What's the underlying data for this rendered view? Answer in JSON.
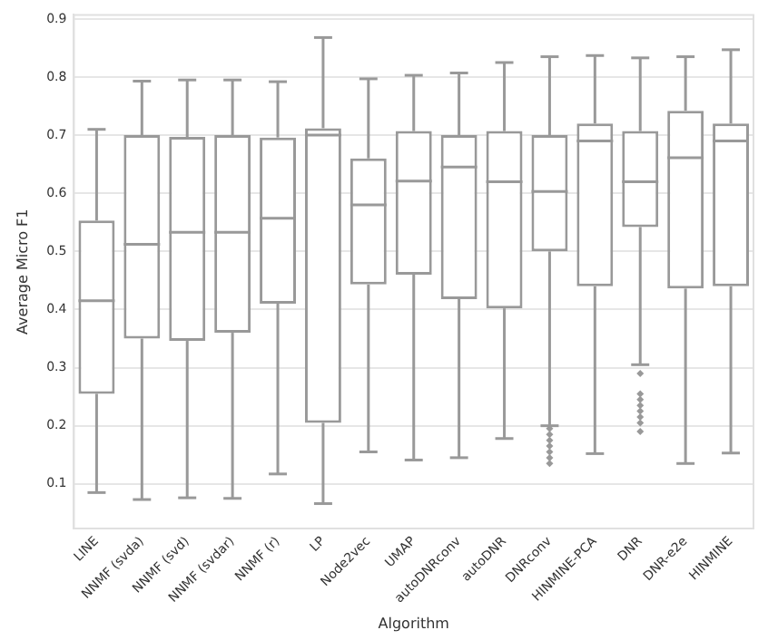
{
  "chart_data": {
    "type": "box",
    "xlabel": "Algorithm",
    "ylabel": "Average Micro F1",
    "categories": [
      "LINE",
      "NNMF (svda)",
      "NNMF (svd)",
      "NNMF (svdar)",
      "NNMF (r)",
      "LP",
      "Node2vec",
      "UMAP",
      "autoDNRconv",
      "autoDNR",
      "DNRconv",
      "HINMINE-PCA",
      "DNR",
      "DNR-e2e",
      "HINMINE"
    ],
    "color": "#999999",
    "boxes": [
      {
        "low": 0.085,
        "q1": 0.255,
        "median": 0.415,
        "q3": 0.553,
        "high": 0.71
      },
      {
        "low": 0.073,
        "q1": 0.35,
        "median": 0.512,
        "q3": 0.7,
        "high": 0.793
      },
      {
        "low": 0.076,
        "q1": 0.346,
        "median": 0.533,
        "q3": 0.697,
        "high": 0.795
      },
      {
        "low": 0.075,
        "q1": 0.36,
        "median": 0.533,
        "q3": 0.7,
        "high": 0.795
      },
      {
        "low": 0.117,
        "q1": 0.41,
        "median": 0.557,
        "q3": 0.696,
        "high": 0.792
      },
      {
        "low": 0.066,
        "q1": 0.205,
        "median": 0.7,
        "q3": 0.712,
        "high": 0.868
      },
      {
        "low": 0.155,
        "q1": 0.443,
        "median": 0.58,
        "q3": 0.66,
        "high": 0.797
      },
      {
        "low": 0.141,
        "q1": 0.46,
        "median": 0.621,
        "q3": 0.707,
        "high": 0.803
      },
      {
        "low": 0.145,
        "q1": 0.418,
        "median": 0.645,
        "q3": 0.7,
        "high": 0.807
      },
      {
        "low": 0.178,
        "q1": 0.402,
        "median": 0.62,
        "q3": 0.707,
        "high": 0.825
      },
      {
        "low": 0.2,
        "q1": 0.5,
        "median": 0.603,
        "q3": 0.7,
        "high": 0.835,
        "outliers": [
          0.195,
          0.185,
          0.175,
          0.165,
          0.155,
          0.145,
          0.135
        ]
      },
      {
        "low": 0.152,
        "q1": 0.44,
        "median": 0.69,
        "q3": 0.72,
        "high": 0.837
      },
      {
        "low": 0.305,
        "q1": 0.542,
        "median": 0.62,
        "q3": 0.707,
        "high": 0.833,
        "outliers": [
          0.29,
          0.255,
          0.245,
          0.235,
          0.225,
          0.215,
          0.205,
          0.19
        ]
      },
      {
        "low": 0.135,
        "q1": 0.436,
        "median": 0.661,
        "q3": 0.742,
        "high": 0.835
      },
      {
        "low": 0.153,
        "q1": 0.44,
        "median": 0.69,
        "q3": 0.72,
        "high": 0.847
      }
    ],
    "ylim": [
      0.023,
      0.907
    ],
    "yticks": [
      0.1,
      0.2,
      0.3,
      0.4,
      0.5,
      0.6,
      0.7,
      0.8,
      0.9
    ],
    "grid": "y"
  }
}
